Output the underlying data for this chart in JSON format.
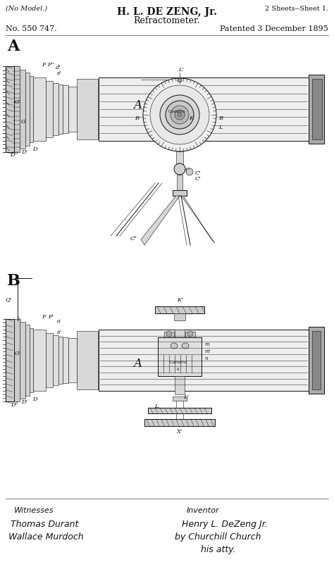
{
  "title_line1": "H. L. DE ZENG, Jr.",
  "title_line2": "Refractometer.",
  "no_model": "(No Model.)",
  "sheets": "2 Sheets--Sheet 1.",
  "patent_no": "No. 550 747.",
  "patent_date": "Patented 3 December 1895",
  "section_A": "A",
  "section_B": "B",
  "bg_color": "#ffffff",
  "line_color": "#111111",
  "fig_width": 4.74,
  "fig_height": 7.98,
  "dpi": 100,
  "witness_label": "Witnesses",
  "witness1": "Thomas Durant",
  "witness2": "Wallace Murdoch",
  "inventor_label": "Inventor",
  "inventor1": "Henry L. DeZeng Jr.",
  "inventor2": "by Churchill Church",
  "inventor3": "his atty."
}
